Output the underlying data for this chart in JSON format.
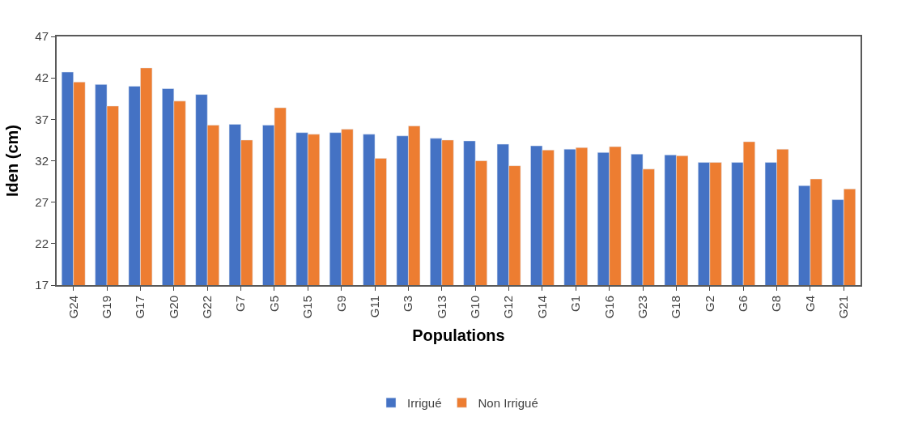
{
  "chart_data": {
    "type": "bar",
    "xlabel": "Populations",
    "ylabel": "Iden (cm)",
    "categories": [
      "G24",
      "G19",
      "G17",
      "G20",
      "G22",
      "G7",
      "G5",
      "G15",
      "G9",
      "G11",
      "G3",
      "G13",
      "G10",
      "G12",
      "G14",
      "G1",
      "G16",
      "G23",
      "G18",
      "G2",
      "G6",
      "G8",
      "G4",
      "G21"
    ],
    "series": [
      {
        "name": "Irrigué",
        "color": "#4472c4",
        "values": [
          42.7,
          41.2,
          41.0,
          40.7,
          40.0,
          36.4,
          36.3,
          35.4,
          35.4,
          35.2,
          35.0,
          34.7,
          34.4,
          34.0,
          33.8,
          33.4,
          33.0,
          32.8,
          32.7,
          31.8,
          31.8,
          31.8,
          29.0,
          27.3
        ]
      },
      {
        "name": "Non Irrigué",
        "color": "#ed7d31",
        "values": [
          41.5,
          38.6,
          43.2,
          39.2,
          36.3,
          34.5,
          38.4,
          35.2,
          35.8,
          32.3,
          36.2,
          34.5,
          32.0,
          31.4,
          33.3,
          33.6,
          33.7,
          31.0,
          32.6,
          31.8,
          34.3,
          33.4,
          29.8,
          28.6
        ]
      }
    ],
    "ylim": [
      17,
      47
    ],
    "yticks": [
      17,
      22,
      27,
      32,
      37,
      42,
      47
    ],
    "legend": "bottom"
  }
}
